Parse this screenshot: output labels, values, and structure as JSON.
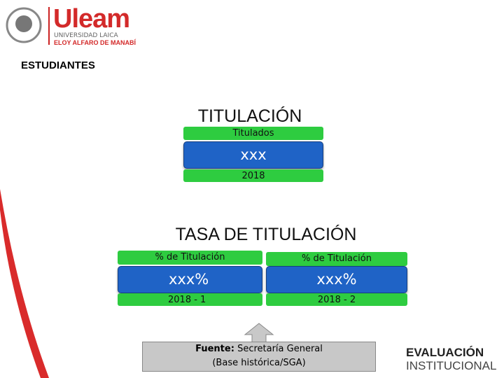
{
  "header": {
    "logo_name": "Uleam",
    "logo_line1": "UNIVERSIDAD LAICA",
    "logo_line2": "ELOY ALFARO DE MANABÍ",
    "section": "ESTUDIANTES"
  },
  "titulacion": {
    "title": "TITULACIÓN",
    "label": "Titulados",
    "value": "xxx",
    "year": "2018"
  },
  "tasa": {
    "title": "TASA DE TITULACIÓN",
    "items": [
      {
        "label": "% de Titulación",
        "value": "xxx%",
        "period": "2018 - 1"
      },
      {
        "label": "% de Titulación",
        "value": "xxx%",
        "period": "2018 - 2"
      }
    ]
  },
  "source": {
    "label": "Fuente:",
    "text": "Secretaría General",
    "line2": "(Base histórica/SGA)"
  },
  "footer_logo": {
    "line1": "EVALUACIÓN",
    "line2": "INSTITUCIONAL"
  }
}
